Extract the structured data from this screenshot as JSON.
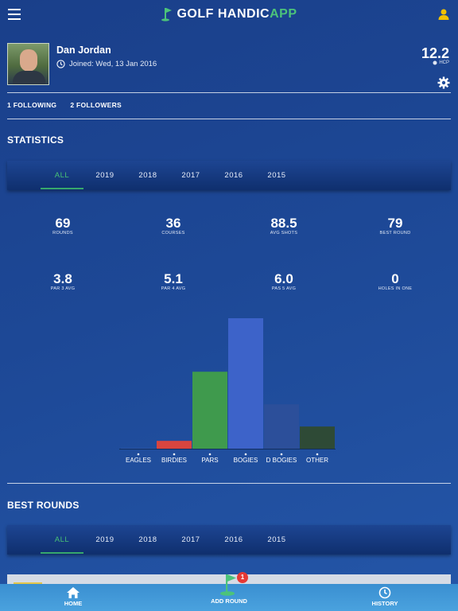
{
  "header": {
    "logo_main": "GOLF HANDIC",
    "logo_accent": "APP",
    "colors": {
      "accent": "#4cc37a",
      "user_icon": "#f2c200"
    }
  },
  "profile": {
    "name": "Dan Jordan",
    "joined": "Joined: Wed, 13 Jan 2016",
    "handicap": "12.2",
    "handicap_label": "HCP"
  },
  "social": {
    "following": "1 FOLLOWING",
    "followers": "2 FOLLOWERS"
  },
  "statistics": {
    "title": "STATISTICS",
    "tabs": [
      "ALL",
      "2019",
      "2018",
      "2017",
      "2016",
      "2015"
    ],
    "active_tab": "ALL",
    "stats": [
      {
        "value": "69",
        "label": "ROUNDS"
      },
      {
        "value": "36",
        "label": "COURSES"
      },
      {
        "value": "88.5",
        "label": "AVG SHOTS"
      },
      {
        "value": "79",
        "label": "BEST ROUND"
      },
      {
        "value": "3.8",
        "label": "PAR 3 AVG"
      },
      {
        "value": "5.1",
        "label": "PAR 4 AVG"
      },
      {
        "value": "6.0",
        "label": "PAS 5 AVG"
      },
      {
        "value": "0",
        "label": "HOLES IN ONE"
      }
    ]
  },
  "chart_data": {
    "type": "bar",
    "categories": [
      "EAGLES",
      "BIRDIES",
      "PARS",
      "BOGIES",
      "D BOGIES",
      "OTHER"
    ],
    "values": [
      0.3,
      6,
      59,
      100,
      34,
      17
    ],
    "colors": [
      "#2f5bb0",
      "#d9453f",
      "#3f9a4d",
      "#3d63c9",
      "#2c4f9a",
      "#2e4a36"
    ],
    "ylim": [
      0,
      100
    ]
  },
  "best_rounds": {
    "title": "BEST ROUNDS",
    "tabs": [
      "ALL",
      "2019",
      "2018",
      "2017",
      "2016",
      "2015"
    ],
    "active_tab": "ALL"
  },
  "bottom_nav": {
    "home": "HOME",
    "add_round": "ADD ROUND",
    "history": "HISTORY",
    "badge_count": "1"
  }
}
